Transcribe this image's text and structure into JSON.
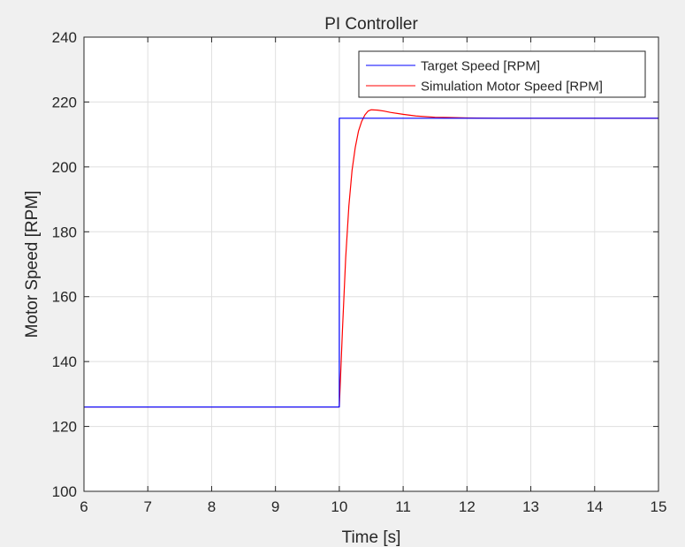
{
  "chart_data": {
    "type": "line",
    "title": "PI Controller",
    "xlabel": "Time [s]",
    "ylabel": "Motor Speed [RPM]",
    "xlim": [
      6,
      15
    ],
    "ylim": [
      100,
      240
    ],
    "xticks": [
      6,
      7,
      8,
      9,
      10,
      11,
      12,
      13,
      14,
      15
    ],
    "yticks": [
      100,
      120,
      140,
      160,
      180,
      200,
      220,
      240
    ],
    "grid": true,
    "legend_position": "top-right",
    "series": [
      {
        "name": "Target Speed [RPM]",
        "color": "#0000ff",
        "x": [
          6,
          10,
          10,
          15
        ],
        "y": [
          126,
          126,
          215,
          215
        ]
      },
      {
        "name": "Simulation Motor Speed [RPM]",
        "color": "#ff0000",
        "x": [
          6,
          10,
          10.05,
          10.1,
          10.15,
          10.2,
          10.25,
          10.3,
          10.35,
          10.4,
          10.45,
          10.5,
          10.6,
          10.7,
          10.8,
          11.0,
          11.2,
          11.5,
          12.0,
          12.5,
          13.0,
          15
        ],
        "y": [
          126,
          126,
          150,
          172,
          188,
          199,
          206,
          211,
          214,
          216,
          217.2,
          217.6,
          217.5,
          217.2,
          216.8,
          216.2,
          215.7,
          215.3,
          215.1,
          215.0,
          215.0,
          215.0
        ]
      }
    ]
  }
}
